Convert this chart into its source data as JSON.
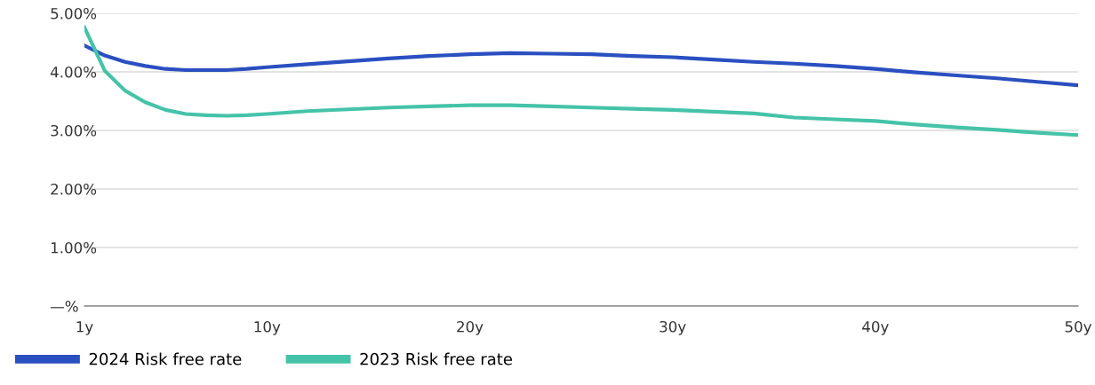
{
  "chart_data": {
    "type": "line",
    "x": [
      1,
      2,
      3,
      4,
      5,
      6,
      7,
      8,
      9,
      10,
      12,
      14,
      16,
      18,
      20,
      22,
      24,
      26,
      28,
      30,
      32,
      34,
      36,
      38,
      40,
      42,
      44,
      46,
      48,
      50
    ],
    "series": [
      {
        "name": "2024 Risk free rate",
        "color": "#2a4fc0",
        "values": [
          4.45,
          4.28,
          4.17,
          4.1,
          4.05,
          4.03,
          4.03,
          4.03,
          4.05,
          4.08,
          4.13,
          4.18,
          4.23,
          4.27,
          4.3,
          4.32,
          4.31,
          4.3,
          4.27,
          4.25,
          4.21,
          4.17,
          4.14,
          4.1,
          4.05,
          3.99,
          3.94,
          3.89,
          3.83,
          3.77
        ]
      },
      {
        "name": "2023 Risk free rate",
        "color": "#45c3a9",
        "values": [
          4.76,
          4.02,
          3.68,
          3.48,
          3.35,
          3.28,
          3.26,
          3.25,
          3.26,
          3.28,
          3.33,
          3.36,
          3.39,
          3.41,
          3.43,
          3.43,
          3.41,
          3.39,
          3.37,
          3.35,
          3.32,
          3.29,
          3.22,
          3.19,
          3.16,
          3.1,
          3.05,
          3.01,
          2.96,
          2.92
        ]
      }
    ],
    "xlim": [
      1,
      50
    ],
    "xticks": [
      {
        "value": 1,
        "label": "1y"
      },
      {
        "value": 10,
        "label": "10y"
      },
      {
        "value": 20,
        "label": "20y"
      },
      {
        "value": 30,
        "label": "30y"
      },
      {
        "value": 40,
        "label": "40y"
      },
      {
        "value": 50,
        "label": "50y"
      }
    ],
    "ylim": [
      0,
      5
    ],
    "yticks": [
      {
        "value": 0,
        "label": "—%"
      },
      {
        "value": 1,
        "label": "1.00%"
      },
      {
        "value": 2,
        "label": "2.00%"
      },
      {
        "value": 3,
        "label": "3.00%"
      },
      {
        "value": 4,
        "label": "4.00%"
      },
      {
        "value": 5,
        "label": "5.00%"
      }
    ],
    "grid": "y",
    "legend": "bottom left",
    "marker": "none",
    "line_style": "solid"
  }
}
